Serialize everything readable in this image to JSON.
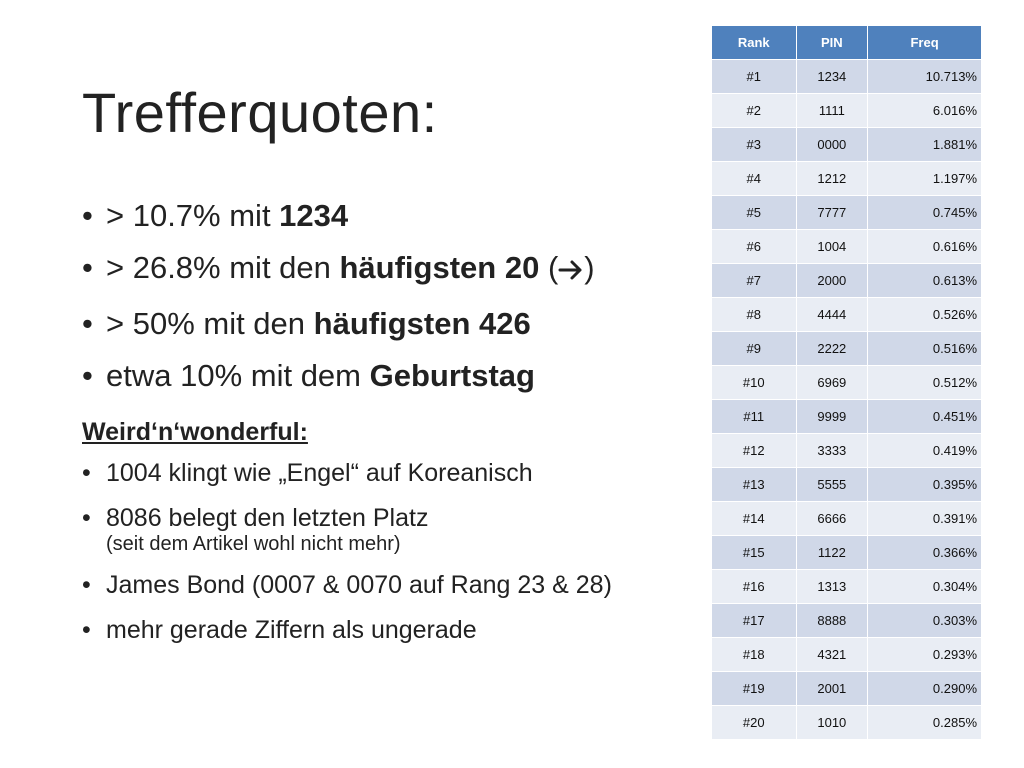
{
  "slide": {
    "title": "Trefferquoten:",
    "bullets": [
      {
        "prefix": "> 10.7% mit ",
        "bold": "1234",
        "suffix": ""
      },
      {
        "prefix": "> 26.8% mit den ",
        "bold": "häufigsten 20",
        "suffix": " (",
        "suffix_end": ")",
        "icon": "right-arrow-icon"
      },
      {
        "prefix": "> 50% mit den ",
        "bold": "häufigsten 426",
        "suffix": ""
      },
      {
        "prefix": "etwa 10% mit dem ",
        "bold": "Geburtstag",
        "suffix": ""
      }
    ],
    "subheading": "Weird‘n‘wonderful:",
    "sub_bullets": [
      {
        "text": "1004 klingt wie „Engel“ auf Koreanisch",
        "note": ""
      },
      {
        "text": "8086 belegt den letzten Platz",
        "note": "(seit dem Artikel wohl nicht mehr)"
      },
      {
        "text": "James Bond (0007 & 0070 auf Rang 23 & 28)",
        "note": ""
      },
      {
        "text": "mehr gerade Ziffern als ungerade",
        "note": ""
      }
    ]
  },
  "table": {
    "headers": [
      "Rank",
      "PIN",
      "Freq"
    ],
    "header_color": "#4f81bd",
    "rows": [
      [
        "#1",
        "1234",
        "10.713%"
      ],
      [
        "#2",
        "1111",
        "6.016%"
      ],
      [
        "#3",
        "0000",
        "1.881%"
      ],
      [
        "#4",
        "1212",
        "1.197%"
      ],
      [
        "#5",
        "7777",
        "0.745%"
      ],
      [
        "#6",
        "1004",
        "0.616%"
      ],
      [
        "#7",
        "2000",
        "0.613%"
      ],
      [
        "#8",
        "4444",
        "0.526%"
      ],
      [
        "#9",
        "2222",
        "0.516%"
      ],
      [
        "#10",
        "6969",
        "0.512%"
      ],
      [
        "#11",
        "9999",
        "0.451%"
      ],
      [
        "#12",
        "3333",
        "0.419%"
      ],
      [
        "#13",
        "5555",
        "0.395%"
      ],
      [
        "#14",
        "6666",
        "0.391%"
      ],
      [
        "#15",
        "1122",
        "0.366%"
      ],
      [
        "#16",
        "1313",
        "0.304%"
      ],
      [
        "#17",
        "8888",
        "0.303%"
      ],
      [
        "#18",
        "4321",
        "0.293%"
      ],
      [
        "#19",
        "2001",
        "0.290%"
      ],
      [
        "#20",
        "1010",
        "0.285%"
      ]
    ]
  }
}
